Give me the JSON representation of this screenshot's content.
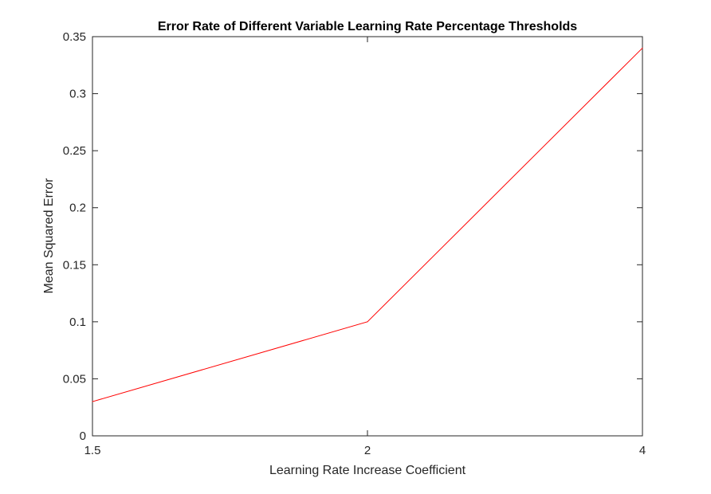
{
  "chart_data": {
    "type": "line",
    "title": "Error Rate of Different Variable Learning Rate Percentage Thresholds",
    "xlabel": "Learning Rate Increase Coefficient",
    "ylabel": "Mean Squared Error",
    "x_scale": "categorical",
    "categories": [
      "1.5",
      "2",
      "4"
    ],
    "series": [
      {
        "values": [
          0.03,
          0.1,
          0.34
        ],
        "color": "#ff0000"
      }
    ],
    "ylim": [
      0,
      0.35
    ],
    "yticks": [
      0,
      0.05,
      0.1,
      0.15,
      0.2,
      0.25,
      0.3,
      0.35
    ],
    "ytick_labels": [
      "0",
      "0.05",
      "0.1",
      "0.15",
      "0.2",
      "0.25",
      "0.3",
      "0.35"
    ],
    "grid": false,
    "legend": "none",
    "box": true
  }
}
